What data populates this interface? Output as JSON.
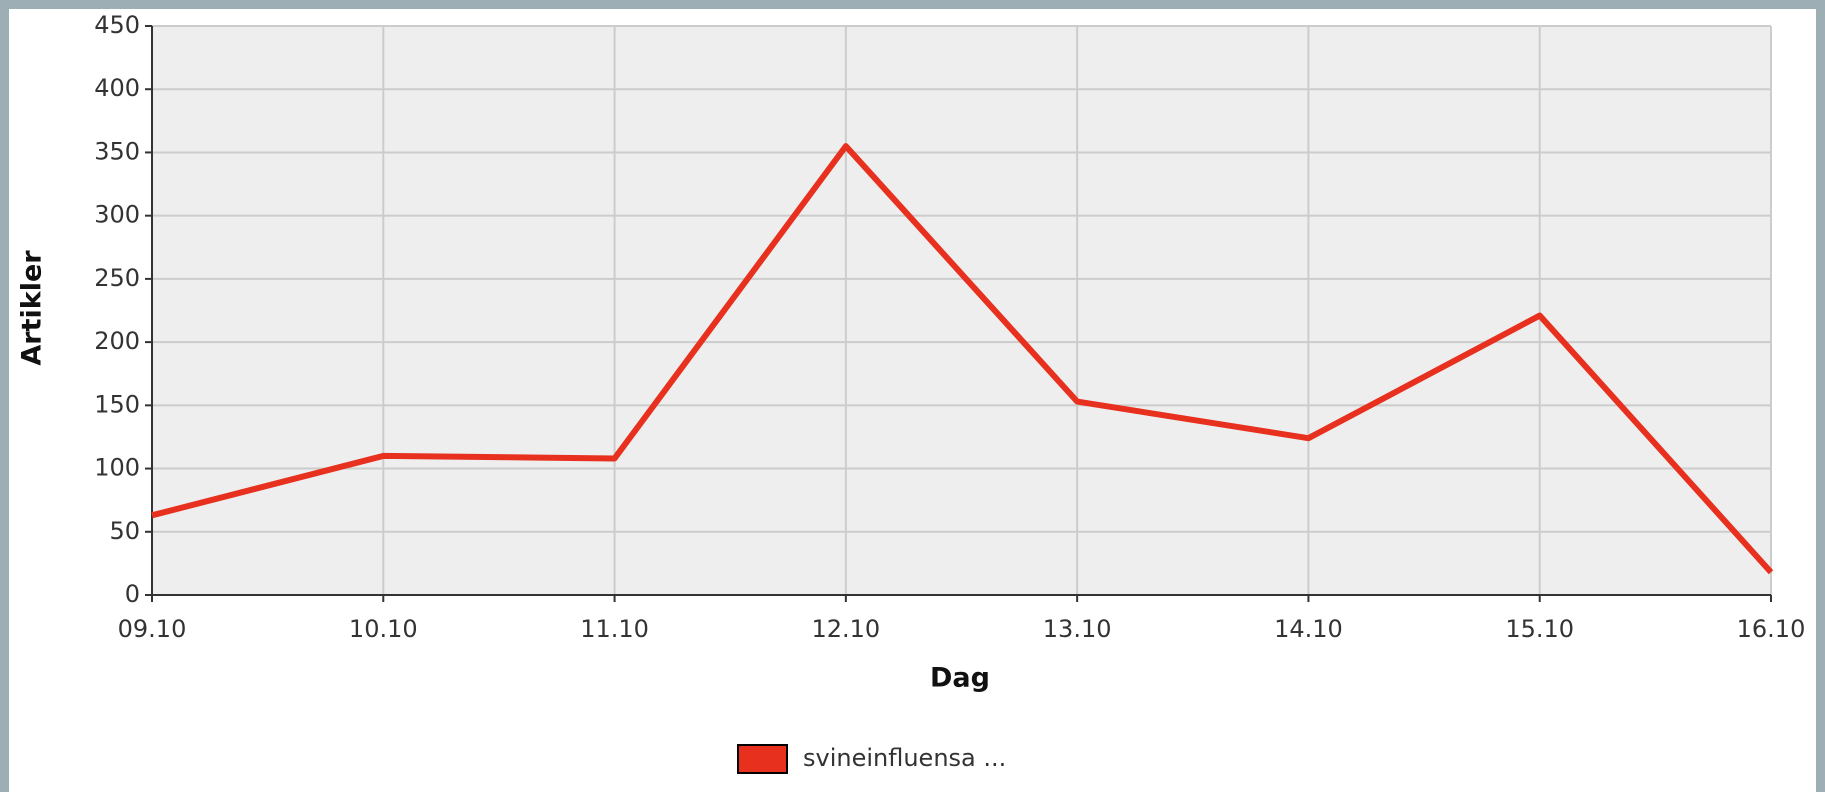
{
  "chart_data": {
    "type": "line",
    "x_label": "Dag",
    "y_label": "Artikler",
    "categories": [
      "09.10",
      "10.10",
      "11.10",
      "12.10",
      "13.10",
      "14.10",
      "15.10",
      "16.10"
    ],
    "series": [
      {
        "name": "svineinfluensa ...",
        "color": "#e8301f",
        "values": [
          63,
          110,
          108,
          355,
          153,
          124,
          221,
          18
        ]
      }
    ],
    "ylim": [
      0,
      450
    ],
    "yticks": [
      0,
      50,
      100,
      150,
      200,
      250,
      300,
      350,
      400,
      450
    ],
    "grid": true,
    "legend": "bottom"
  }
}
